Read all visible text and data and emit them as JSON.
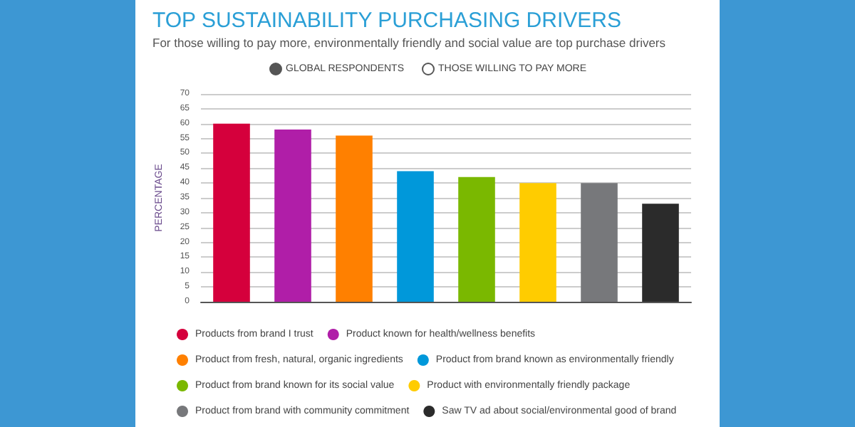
{
  "chart_data": {
    "type": "bar",
    "title": "TOP SUSTAINABILITY PURCHASING DRIVERS",
    "subtitle": "For those willing to pay more, environmentally friendly and social value are top purchase drivers",
    "ylabel": "PERCENTAGE",
    "annotations": [
      "GLOBAL RESPONDENTS",
      "THOSE WILLING TO PAY MORE"
    ],
    "categories": [
      null,
      null,
      null,
      null,
      null,
      null,
      null,
      null
    ],
    "series": [
      {
        "name": "Products from brand I trust",
        "color": "#d5003c",
        "values": [
          60,
          null,
          null,
          null,
          null,
          null,
          null,
          null
        ]
      },
      {
        "name": "Product known for health/wellness benefits",
        "color": "#b01ea8",
        "values": [
          null,
          58,
          null,
          null,
          null,
          null,
          null,
          null
        ]
      },
      {
        "name": "Product from fresh, natural, organic ingredients",
        "color": "#ff8000",
        "values": [
          null,
          null,
          56,
          null,
          null,
          null,
          null,
          null
        ]
      },
      {
        "name": "Product from brand known as environmentally friendly",
        "color": "#0098da",
        "values": [
          null,
          null,
          null,
          44,
          null,
          null,
          null,
          null
        ]
      },
      {
        "name": "Product from brand known for its social value",
        "color": "#7ab800",
        "values": [
          null,
          null,
          null,
          null,
          42,
          null,
          null,
          null
        ]
      },
      {
        "name": "Product with environmentally friendly package",
        "color": "#ffcc00",
        "values": [
          null,
          null,
          null,
          null,
          null,
          40,
          null,
          null
        ]
      },
      {
        "name": "Product from brand with community commitment",
        "color": "#77787b",
        "values": [
          null,
          null,
          null,
          null,
          null,
          null,
          40,
          null
        ]
      },
      {
        "name": "Saw TV ad about social/environmental good of brand",
        "color": "#2b2b2b",
        "values": [
          null,
          null,
          null,
          null,
          null,
          null,
          null,
          33
        ]
      }
    ],
    "ylim": [
      0,
      70
    ],
    "yticks": [
      0,
      5,
      10,
      15,
      20,
      25,
      30,
      35,
      40,
      45,
      50,
      55,
      60,
      65,
      70
    ],
    "grid": "y",
    "legend": "bottom"
  }
}
